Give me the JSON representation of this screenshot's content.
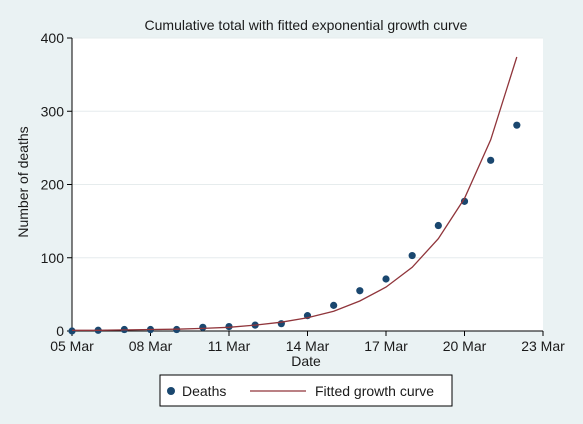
{
  "chart_data": {
    "type": "scatter",
    "title": "Cumulative total with fitted exponential growth curve",
    "xlabel": "Date",
    "ylabel": "Number of deaths",
    "x_ticks": [
      "05 Mar",
      "08 Mar",
      "11 Mar",
      "14 Mar",
      "17 Mar",
      "20 Mar",
      "23 Mar"
    ],
    "y_ticks": [
      0,
      100,
      200,
      300,
      400
    ],
    "xlim": [
      "05 Mar",
      "23 Mar"
    ],
    "ylim": [
      0,
      400
    ],
    "grid": true,
    "legend_position": "bottom",
    "series": [
      {
        "name": "Deaths",
        "kind": "scatter",
        "color": "#1a476f",
        "points": [
          {
            "x": "05 Mar",
            "y": 0
          },
          {
            "x": "06 Mar",
            "y": 1
          },
          {
            "x": "07 Mar",
            "y": 2
          },
          {
            "x": "08 Mar",
            "y": 2
          },
          {
            "x": "09 Mar",
            "y": 2
          },
          {
            "x": "10 Mar",
            "y": 5
          },
          {
            "x": "11 Mar",
            "y": 6
          },
          {
            "x": "12 Mar",
            "y": 8
          },
          {
            "x": "13 Mar",
            "y": 10
          },
          {
            "x": "14 Mar",
            "y": 21
          },
          {
            "x": "15 Mar",
            "y": 35
          },
          {
            "x": "16 Mar",
            "y": 55
          },
          {
            "x": "17 Mar",
            "y": 71
          },
          {
            "x": "18 Mar",
            "y": 103
          },
          {
            "x": "19 Mar",
            "y": 144
          },
          {
            "x": "20 Mar",
            "y": 177
          },
          {
            "x": "21 Mar",
            "y": 233
          },
          {
            "x": "22 Mar",
            "y": 281
          }
        ]
      },
      {
        "name": "Fitted growth curve",
        "kind": "line",
        "color": "#90353b",
        "points": [
          {
            "x": "05 Mar",
            "y": 1
          },
          {
            "x": "06 Mar",
            "y": 1
          },
          {
            "x": "07 Mar",
            "y": 1.5
          },
          {
            "x": "08 Mar",
            "y": 2
          },
          {
            "x": "09 Mar",
            "y": 2.5
          },
          {
            "x": "10 Mar",
            "y": 3.5
          },
          {
            "x": "11 Mar",
            "y": 5
          },
          {
            "x": "12 Mar",
            "y": 8
          },
          {
            "x": "13 Mar",
            "y": 12
          },
          {
            "x": "14 Mar",
            "y": 18
          },
          {
            "x": "15 Mar",
            "y": 27
          },
          {
            "x": "16 Mar",
            "y": 41
          },
          {
            "x": "17 Mar",
            "y": 60
          },
          {
            "x": "18 Mar",
            "y": 87
          },
          {
            "x": "19 Mar",
            "y": 126
          },
          {
            "x": "20 Mar",
            "y": 181
          },
          {
            "x": "21 Mar",
            "y": 261
          },
          {
            "x": "22 Mar",
            "y": 374
          }
        ]
      }
    ]
  }
}
